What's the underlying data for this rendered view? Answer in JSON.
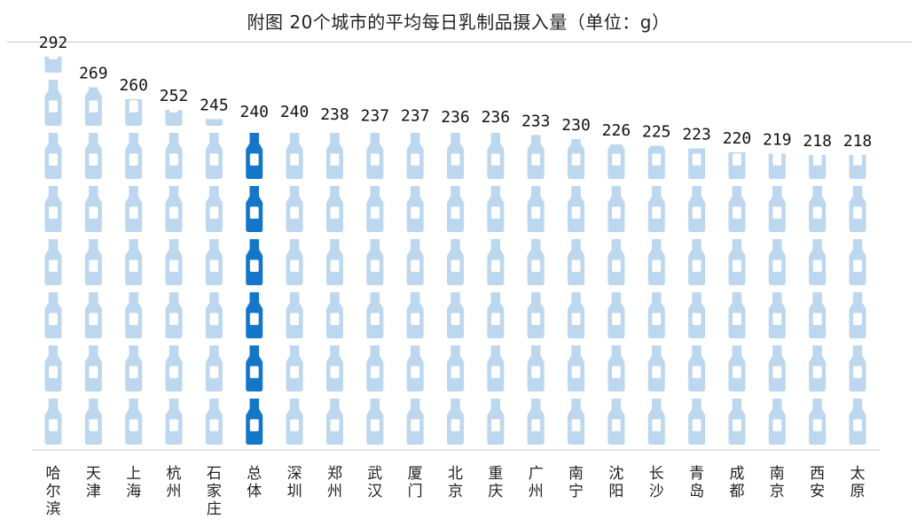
{
  "title": "附图 20个城市的平均每日乳制品摄入量（单位：g）",
  "colors": {
    "bottle": "#bcd7ee",
    "bottle_highlight": "#1476c8",
    "bottle_label": "#ffffff",
    "baseline": "#c8c8c8"
  },
  "icons": {
    "mark": "milk-bottle-icon"
  },
  "chart_data": {
    "type": "bar",
    "style": "pictogram",
    "unit": "g",
    "bottle_unit_value": 40,
    "categories": [
      "哈尔滨",
      "天津",
      "上海",
      "杭州",
      "石家庄",
      "总体",
      "深圳",
      "郑州",
      "武汉",
      "厦门",
      "北京",
      "重庆",
      "广州",
      "南宁",
      "沈阳",
      "长沙",
      "青岛",
      "成都",
      "南京",
      "西安",
      "太原"
    ],
    "values": [
      292,
      269,
      260,
      252,
      245,
      240,
      240,
      238,
      237,
      237,
      236,
      236,
      233,
      230,
      226,
      225,
      223,
      220,
      219,
      218,
      218
    ],
    "highlight": "总体",
    "ylim": [
      0,
      292
    ],
    "grid": false,
    "legend": "none"
  }
}
